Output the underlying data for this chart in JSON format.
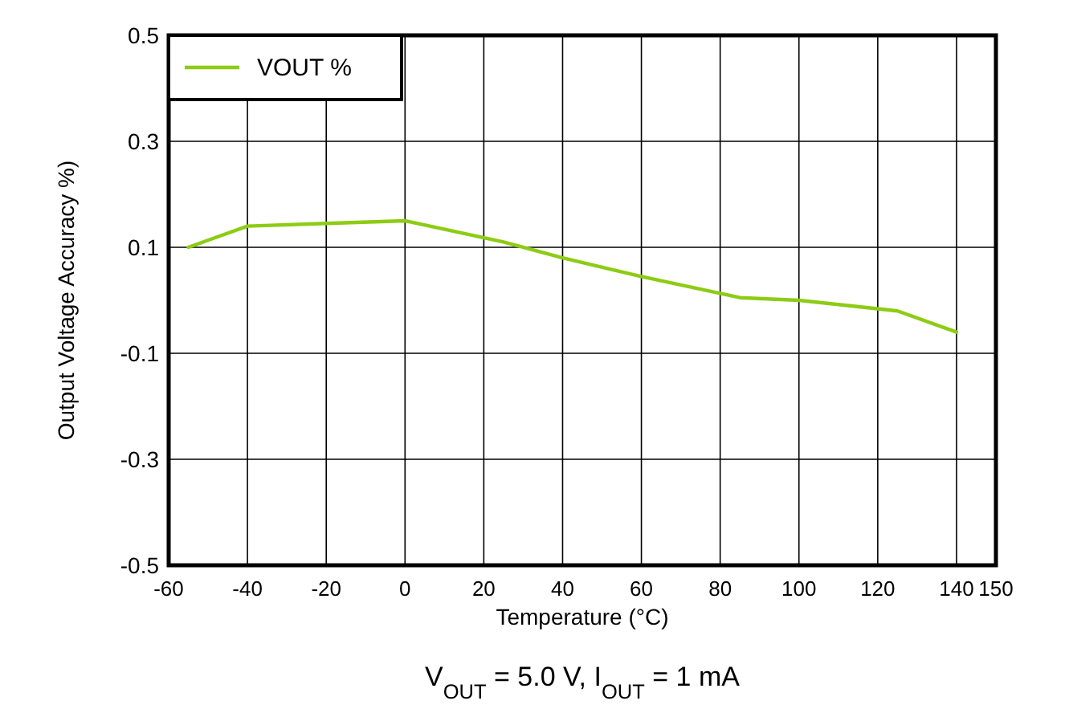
{
  "chart_data": {
    "type": "line",
    "xlabel": "Temperature (°C)",
    "ylabel": "Output Voltage Accuracy %)",
    "annotations": [
      "V$_{OUT}$ = 5.0 V, I$_{OUT}$ = 1 mA"
    ],
    "x": [
      -55,
      -40,
      -20,
      0,
      25,
      40,
      60,
      85,
      100,
      125,
      140
    ],
    "series": [
      {
        "name": "VOUT %",
        "color": "#8ccc14",
        "values": [
          0.1,
          0.14,
          0.145,
          0.15,
          0.11,
          0.08,
          0.045,
          0.005,
          0,
          -0.02,
          -0.06
        ]
      }
    ],
    "xlim": [
      -60,
      150
    ],
    "xticks": [
      -60,
      -40,
      -20,
      0,
      20,
      40,
      60,
      80,
      100,
      120,
      140,
      150
    ],
    "ylim": [
      -0.5,
      0.5
    ],
    "yticks": [
      {
        "value": -0.5,
        "label": "-0.5"
      },
      {
        "value": -0.3,
        "label": "-0.3"
      },
      {
        "value": -0.1,
        "label": "-0.1"
      },
      {
        "value": 0.1,
        "label": "0.1"
      },
      {
        "value": 0.3,
        "label": "0.3"
      },
      {
        "value": 0.5,
        "label": "0.5"
      }
    ],
    "grid": true,
    "legend": "top left",
    "line_style": "solid",
    "marker": "none"
  }
}
